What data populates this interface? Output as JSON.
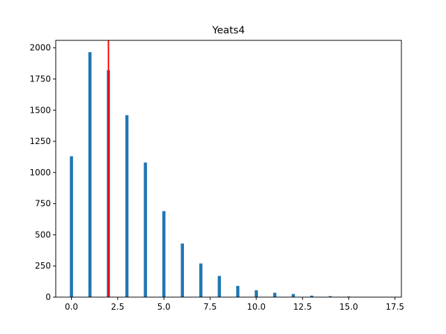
{
  "chart_data": {
    "type": "bar",
    "title": "Yeats4",
    "xlabel": "",
    "ylabel": "",
    "xlim": [
      -0.85,
      17.85
    ],
    "ylim": [
      0,
      2060
    ],
    "x": [
      0,
      1,
      2,
      3,
      4,
      5,
      6,
      7,
      8,
      9,
      10,
      11,
      12,
      13,
      14,
      15,
      16,
      17
    ],
    "values": [
      1130,
      1965,
      1820,
      1460,
      1080,
      690,
      430,
      270,
      170,
      90,
      55,
      35,
      25,
      12,
      8,
      5,
      3,
      1
    ],
    "bar_width": 0.17,
    "bar_color": "#1f77b4",
    "x_ticks": [
      0.0,
      2.5,
      5.0,
      7.5,
      10.0,
      12.5,
      15.0,
      17.5
    ],
    "x_tick_labels": [
      "0.0",
      "2.5",
      "5.0",
      "7.5",
      "10.0",
      "12.5",
      "15.0",
      "17.5"
    ],
    "y_ticks": [
      0,
      250,
      500,
      750,
      1000,
      1250,
      1500,
      1750,
      2000
    ],
    "y_tick_labels": [
      "0",
      "250",
      "500",
      "750",
      "1000",
      "1250",
      "1500",
      "1750",
      "2000"
    ],
    "reference_line": {
      "x": 2.0,
      "color": "#ff0000"
    },
    "grid": false,
    "legend": "none"
  }
}
